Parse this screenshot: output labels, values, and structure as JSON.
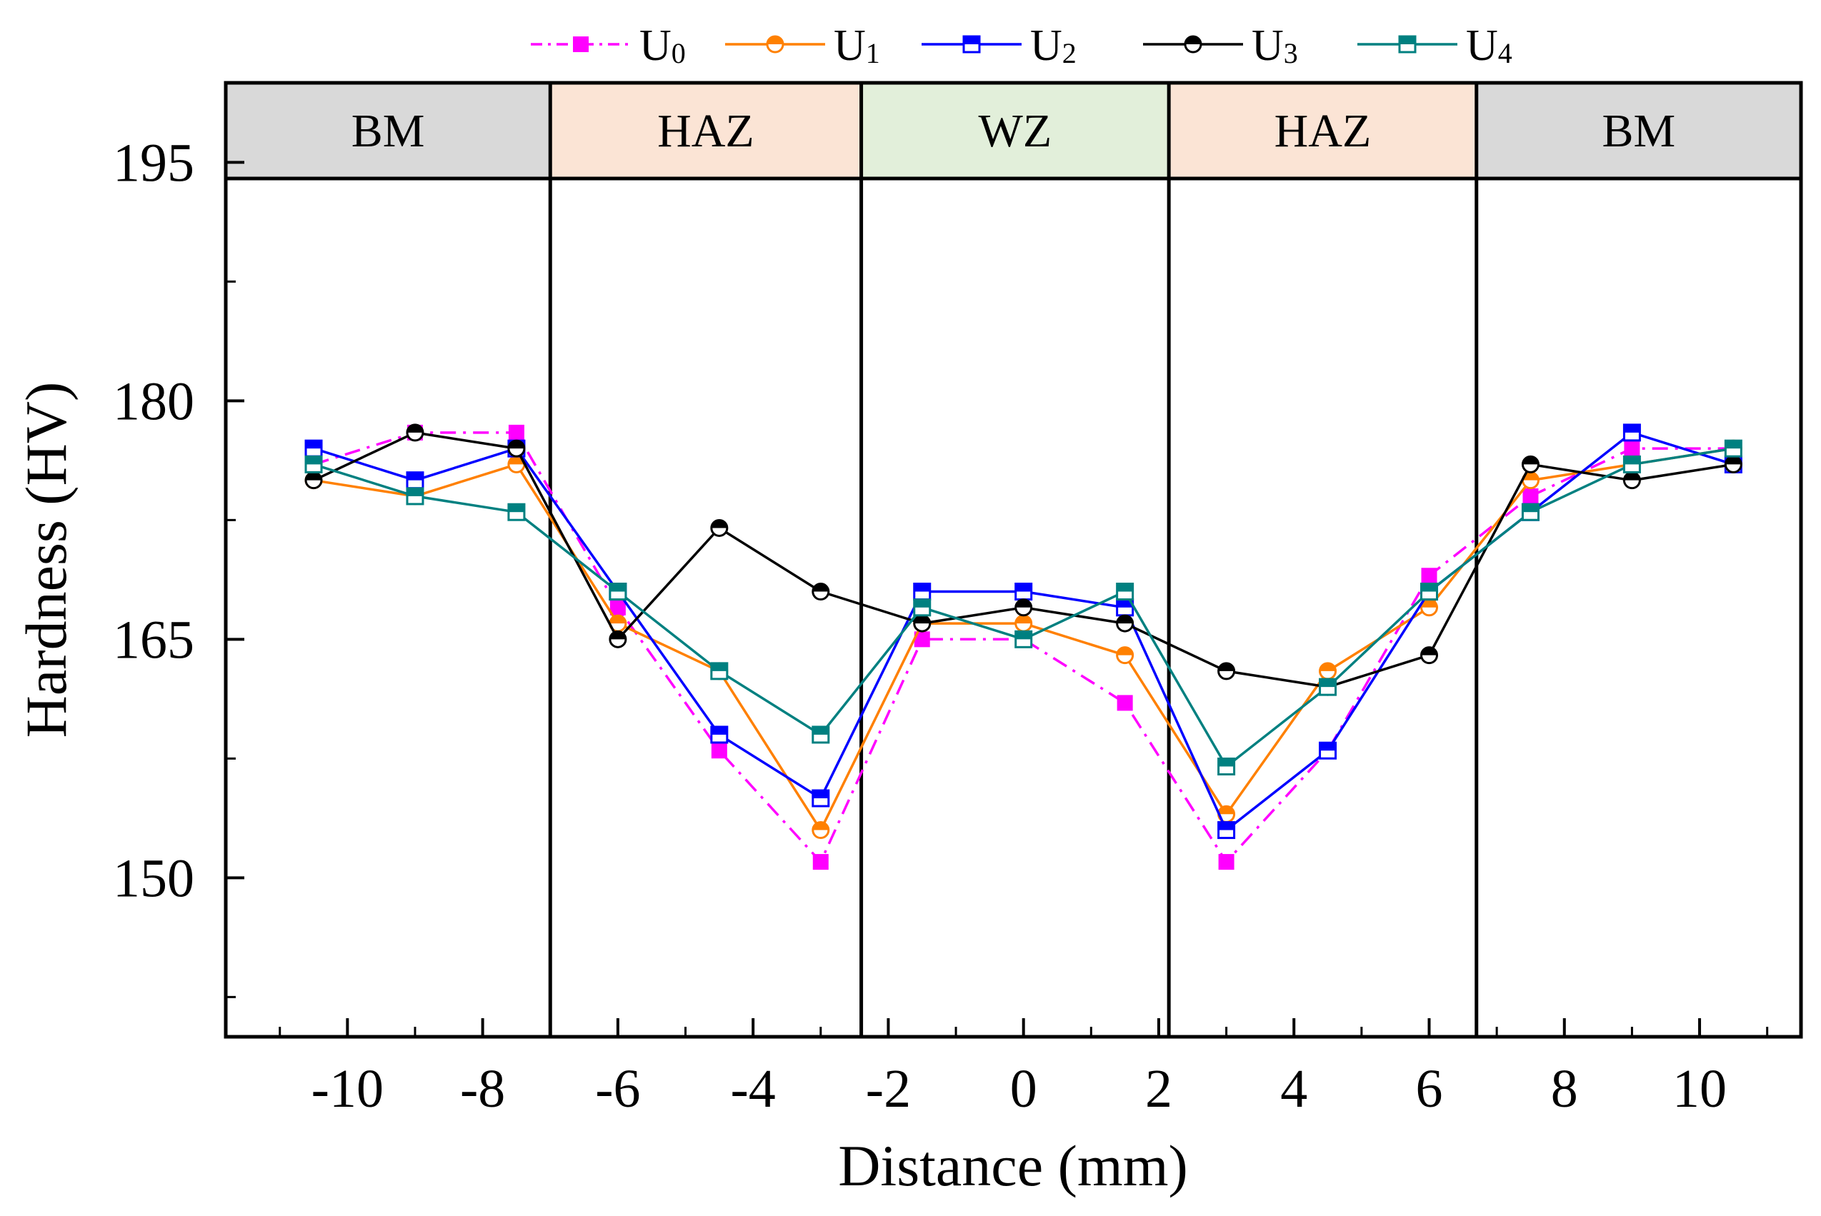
{
  "chart_data": {
    "type": "line",
    "title": "",
    "xlabel": "Distance (mm)",
    "ylabel": "Hardness (HV)",
    "xlim": [
      -11.8,
      11.5
    ],
    "ylim": [
      140,
      200
    ],
    "xticks": [
      -10,
      -8,
      -6,
      -4,
      -2,
      0,
      2,
      4,
      6,
      8,
      10
    ],
    "xtick_labels": [
      "-10",
      "-8",
      "-6",
      "-4",
      "-2",
      "0",
      "2",
      "4",
      "6",
      "8",
      "10"
    ],
    "yticks": [
      150,
      165,
      180,
      195
    ],
    "ytick_labels": [
      "150",
      "165",
      "180",
      "195"
    ],
    "grid": false,
    "legend_position": "top",
    "zones": [
      {
        "label": "BM",
        "from": -11.8,
        "to": -7.0,
        "color": "#d9d9d9"
      },
      {
        "label": "HAZ",
        "from": -7.0,
        "to": -2.4,
        "color": "#fbe4d5"
      },
      {
        "label": "WZ",
        "from": -2.4,
        "to": 2.15,
        "color": "#e2efda"
      },
      {
        "label": "HAZ",
        "from": 2.15,
        "to": 6.7,
        "color": "#fbe4d5"
      },
      {
        "label": "BM",
        "from": 6.7,
        "to": 11.5,
        "color": "#d9d9d9"
      }
    ],
    "x": [
      -10.5,
      -9,
      -7.5,
      -6,
      -4.5,
      -3,
      -1.5,
      0,
      1.5,
      3,
      4.5,
      6,
      7.5,
      9,
      10.5
    ],
    "series": [
      {
        "name": "U",
        "subscript": "0",
        "color": "#ff00ff",
        "marker": "square-filled",
        "dash": "dashdot",
        "values": [
          176,
          178,
          178,
          167,
          158,
          151,
          165,
          165,
          161,
          151,
          158,
          169,
          174,
          177,
          177
        ]
      },
      {
        "name": "U",
        "subscript": "1",
        "color": "#ff8000",
        "marker": "circle-half",
        "dash": "solid",
        "values": [
          175,
          174,
          176,
          166,
          163,
          153,
          166,
          166,
          164,
          154,
          163,
          167,
          175,
          176,
          177
        ]
      },
      {
        "name": "U",
        "subscript": "2",
        "color": "#0000ff",
        "marker": "square-half",
        "dash": "solid",
        "values": [
          177,
          175,
          177,
          168,
          159,
          155,
          168,
          168,
          167,
          153,
          158,
          168,
          173,
          178,
          176
        ]
      },
      {
        "name": "U",
        "subscript": "3",
        "color": "#000000",
        "marker": "circle-half",
        "dash": "solid",
        "values": [
          175,
          178,
          177,
          165,
          172,
          168,
          166,
          167,
          166,
          163,
          162,
          164,
          176,
          175,
          176
        ]
      },
      {
        "name": "U",
        "subscript": "4",
        "color": "#008080",
        "marker": "square-half",
        "dash": "solid",
        "values": [
          176,
          174,
          173,
          168,
          163,
          159,
          167,
          165,
          168,
          157,
          162,
          168,
          173,
          176,
          177
        ]
      }
    ]
  }
}
